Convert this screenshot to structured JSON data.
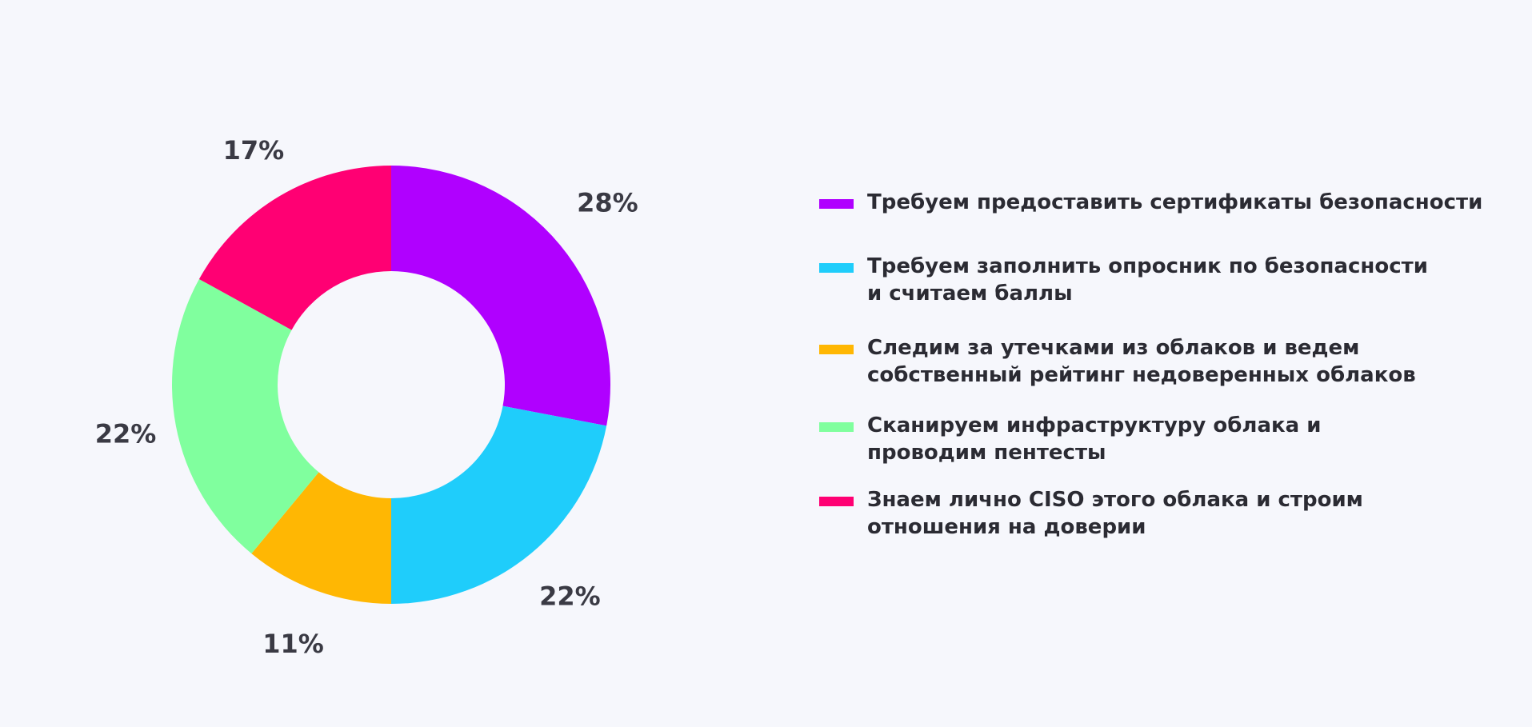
{
  "chart_data": {
    "type": "pie",
    "categories": [
      "Требуем предоставить сертификаты безопасности",
      "Требуем заполнить опросник по безопасности\nи считаем баллы",
      "Следим за утечками из облаков и ведем\nсобственный рейтинг недоверенных облаков",
      "Сканируем инфраструктуру облака и\nпроводим пентесты",
      "Знаем лично CISO этого облака и строим\nотношения на доверии"
    ],
    "values": [
      28,
      22,
      11,
      22,
      17
    ],
    "value_labels": [
      "28%",
      "22%",
      "11%",
      "22%",
      "17%"
    ],
    "colors": [
      "#b000ff",
      "#1fcdfb",
      "#ffb703",
      "#80ff9e",
      "#ff0073"
    ],
    "donut": true,
    "start": "12 o'clock",
    "direction": "clockwise",
    "legend_position": "right"
  }
}
